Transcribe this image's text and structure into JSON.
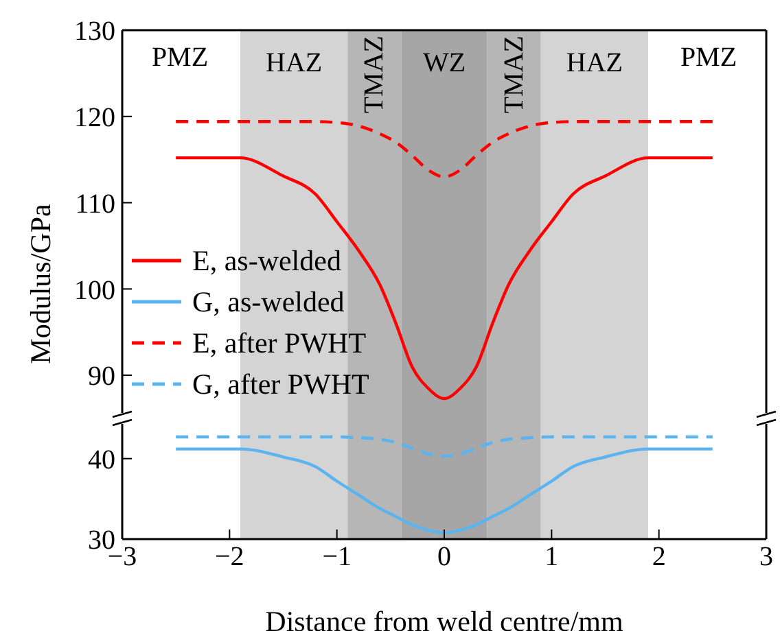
{
  "chart_data": [
    {
      "type": "line",
      "ylabel": "Modulus/GPa",
      "x": [
        -2.5,
        -1.9,
        -1.5,
        -1.2,
        -1,
        -0.8,
        -0.6,
        -0.45,
        -0.3,
        -0.15,
        0,
        0.15,
        0.3,
        0.45,
        0.6,
        0.8,
        1,
        1.2,
        1.5,
        1.9,
        2.5
      ],
      "series": [
        {
          "name": "E, as-welded",
          "color": "#ff0000",
          "line_style": "solid",
          "values": [
            115.2,
            115.2,
            113.1,
            111,
            107.8,
            104.5,
            100.5,
            96,
            91,
            88.5,
            87.3,
            88.5,
            91,
            96,
            100.5,
            104.5,
            107.8,
            111,
            113.1,
            115.2,
            115.2
          ]
        },
        {
          "name": "E, after PWHT",
          "color": "#ff0000",
          "line_style": "dashed",
          "values": [
            119.4,
            119.4,
            119.4,
            119.4,
            119.3,
            118.9,
            118,
            117,
            115.5,
            113.8,
            113,
            113.8,
            115.5,
            117,
            118,
            118.9,
            119.3,
            119.4,
            119.4,
            119.4,
            119.4
          ]
        }
      ],
      "xlim": [
        -3,
        3
      ],
      "ylim": [
        85,
        130
      ],
      "yticks": [
        90,
        100,
        110,
        120,
        130
      ],
      "tick_labels": "y",
      "legend": "left",
      "bands": [
        {
          "axis": "x",
          "from": -1.9,
          "to": -0.9,
          "label": "HAZ",
          "color": "#d4d4d4"
        },
        {
          "axis": "x",
          "from": -0.9,
          "to": -0.4,
          "label": "TMAZ",
          "color": "#b6b6b6"
        },
        {
          "axis": "x",
          "from": -0.4,
          "to": 0.4,
          "label": "WZ",
          "color": "#a6a6a6"
        },
        {
          "axis": "x",
          "from": 0.4,
          "to": 0.9,
          "label": "TMAZ",
          "color": "#b6b6b6"
        },
        {
          "axis": "x",
          "from": 0.9,
          "to": 1.9,
          "label": "HAZ",
          "color": "#d4d4d4"
        }
      ],
      "annotations": [
        "PMZ",
        "PMZ"
      ]
    },
    {
      "type": "line",
      "xlabel": "Distance from weld centre/mm",
      "x": [
        -2.5,
        -1.9,
        -1.5,
        -1.2,
        -1,
        -0.8,
        -0.6,
        -0.45,
        -0.3,
        -0.15,
        0,
        0.15,
        0.3,
        0.45,
        0.6,
        0.8,
        1,
        1.2,
        1.5,
        1.9,
        2.5
      ],
      "series": [
        {
          "name": "G, as-welded",
          "color": "#5ab4f0",
          "line_style": "solid",
          "values": [
            41.2,
            41.2,
            40.2,
            39,
            37.2,
            35.5,
            33.8,
            32.8,
            31.8,
            31.1,
            30.8,
            31.1,
            31.8,
            32.8,
            33.8,
            35.5,
            37.2,
            39,
            40.2,
            41.2,
            41.2
          ]
        },
        {
          "name": "G, after PWHT",
          "color": "#5ab4f0",
          "line_style": "dashed",
          "values": [
            42.7,
            42.7,
            42.7,
            42.7,
            42.7,
            42.6,
            42.4,
            42,
            41.3,
            40.6,
            40.3,
            40.6,
            41.3,
            42,
            42.4,
            42.6,
            42.7,
            42.7,
            42.7,
            42.7,
            42.7
          ]
        }
      ],
      "xlim": [
        -3,
        3
      ],
      "xticks": [
        -3,
        -2,
        -1,
        0,
        1,
        2,
        3
      ],
      "ylim": [
        30,
        45
      ],
      "yticks": [
        30,
        40
      ],
      "legend": "top left",
      "bands": [
        {
          "axis": "x",
          "from": -1.9,
          "to": -0.9,
          "color": "#d4d4d4"
        },
        {
          "axis": "x",
          "from": -0.9,
          "to": -0.4,
          "color": "#b6b6b6"
        },
        {
          "axis": "x",
          "from": -0.4,
          "to": 0.4,
          "color": "#a6a6a6"
        },
        {
          "axis": "x",
          "from": 0.4,
          "to": 0.9,
          "color": "#b6b6b6"
        },
        {
          "axis": "x",
          "from": 0.9,
          "to": 1.9,
          "color": "#d4d4d4"
        }
      ]
    }
  ]
}
